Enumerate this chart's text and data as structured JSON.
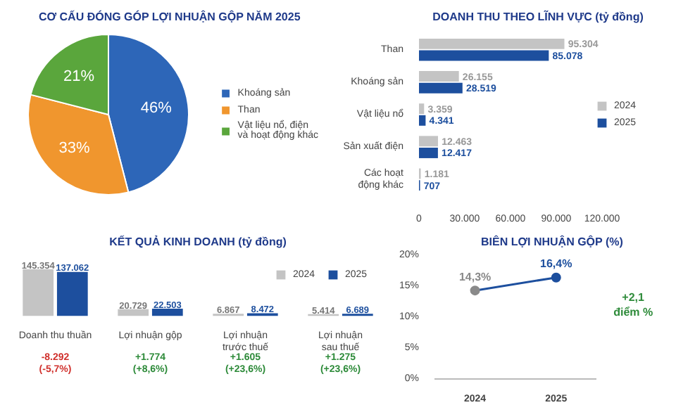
{
  "chart_data": [
    {
      "type": "pie",
      "title": "CƠ CẤU ĐÓNG GÓP LỢI NHUẬN GỘP NĂM 2025",
      "categories": [
        "Khoáng sản",
        "Than",
        "Vật liệu nổ, điện\nvà hoạt động khác"
      ],
      "values": [
        46,
        33,
        21
      ],
      "value_labels": [
        "46%",
        "33%",
        "21%"
      ],
      "colors": [
        "#2d66b8",
        "#f0962e",
        "#5aa63c"
      ],
      "legend": "right"
    },
    {
      "type": "bar",
      "orientation": "horizontal",
      "title": "DOANH THU THEO LĨNH VỰC (tỷ đồng)",
      "categories": [
        "Than",
        "Khoáng sản",
        "Vật liệu nổ",
        "Sản xuất điện",
        "Các hoạt\nđộng khác"
      ],
      "xlim": [
        0,
        120000
      ],
      "xticks": [
        {
          "value": 0,
          "label": "0"
        },
        {
          "value": 30000,
          "label": "30.000"
        },
        {
          "value": 60000,
          "label": "60.000"
        },
        {
          "value": 90000,
          "label": "90.000"
        },
        {
          "value": 120000,
          "label": "120.000"
        }
      ],
      "legend": "right",
      "series": [
        {
          "name": "2024",
          "color": "#c4c4c4",
          "values": [
            95304,
            26155,
            3359,
            12463,
            1181
          ],
          "value_labels": [
            "95.304",
            "26.155",
            "3.359",
            "12.463",
            "1.181"
          ]
        },
        {
          "name": "2025",
          "color": "#1d4f9e",
          "values": [
            85078,
            28519,
            4341,
            12417,
            707
          ],
          "value_labels": [
            "85.078",
            "28.519",
            "4.341",
            "12.417",
            "707"
          ]
        }
      ]
    },
    {
      "type": "bar",
      "title": "KẾT QUẢ KINH DOANH (tỷ đồng)",
      "categories": [
        "Doanh thu thuần",
        "Lợi nhuận gộp",
        "Lợi nhuận\ntrước thuế",
        "Lợi nhuận\nsau thuế"
      ],
      "tick_labels": "x",
      "legend": "top right",
      "annotations": [
        "-8.292\n(-5,7%)",
        "+1.774\n(+8,6%)",
        "+1.605\n(+23,6%)",
        "+1.275\n(+23,6%)"
      ],
      "series": [
        {
          "name": "2024",
          "color": "#c4c4c4",
          "values": [
            145354,
            20729,
            6867,
            5414
          ],
          "value_labels": [
            "145.354",
            "20.729",
            "6.867",
            "5.414"
          ]
        },
        {
          "name": "2025",
          "color": "#1d4f9e",
          "values": [
            137062,
            22503,
            8472,
            6689
          ],
          "value_labels": [
            "137.062",
            "22.503",
            "8.472",
            "6.689"
          ]
        }
      ]
    },
    {
      "type": "line",
      "title": "BIÊN LỢI NHUẬN GỘP (%)",
      "categories": [
        "2024",
        "2025"
      ],
      "ylim": [
        0,
        20
      ],
      "yticks": [
        {
          "value": 0,
          "label": "0%"
        },
        {
          "value": 5,
          "label": "5%"
        },
        {
          "value": 10,
          "label": "10%"
        },
        {
          "value": 15,
          "label": "15%"
        },
        {
          "value": 20,
          "label": "20%"
        }
      ],
      "marker": "circle",
      "colors": [
        "#8a8a8a",
        "#1d4f9e"
      ],
      "annotations": [
        "+2,1\nđiểm %"
      ],
      "series": [
        {
          "color": "#1d4f9e",
          "values": [
            14.3,
            16.4
          ],
          "value_labels": [
            "14,3%",
            "16,4%"
          ]
        }
      ]
    }
  ]
}
